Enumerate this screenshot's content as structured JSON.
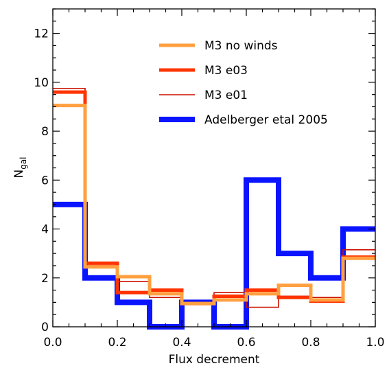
{
  "chart_data": {
    "type": "step",
    "xlabel": "Flux decrement",
    "ylabel": "N",
    "ylabel_sub": "gal",
    "xlim": [
      0.0,
      1.0
    ],
    "ylim": [
      0,
      13
    ],
    "x_ticks": [
      0.0,
      0.2,
      0.4,
      0.6,
      0.8,
      1.0
    ],
    "x_tick_labels": [
      "0.0",
      "0.2",
      "0.4",
      "0.6",
      "0.8",
      "1.0"
    ],
    "y_ticks": [
      0,
      2,
      4,
      6,
      8,
      10,
      12
    ],
    "y_tick_labels": [
      "0",
      "2",
      "4",
      "6",
      "8",
      "10",
      "12"
    ],
    "bin_edges": [
      0.0,
      0.1,
      0.2,
      0.3,
      0.4,
      0.5,
      0.6,
      0.7,
      0.8,
      0.9,
      1.0
    ],
    "legend_position": "top-center",
    "series": [
      {
        "name": "M3 no winds",
        "color": "#FFA040",
        "line_weight": "thick",
        "values": [
          9.05,
          2.45,
          2.05,
          1.35,
          0.95,
          1.1,
          1.35,
          1.7,
          1.1,
          2.8
        ]
      },
      {
        "name": "M3 e03",
        "color": "#FF3300",
        "line_weight": "thick",
        "values": [
          9.6,
          2.6,
          1.4,
          1.5,
          0.95,
          1.25,
          1.5,
          1.2,
          1.05,
          2.85
        ]
      },
      {
        "name": "M3 e01",
        "color": "#CC1100",
        "line_weight": "thin",
        "values": [
          9.75,
          2.5,
          1.85,
          1.2,
          1.0,
          1.4,
          0.8,
          1.25,
          1.2,
          3.15
        ]
      },
      {
        "name": "Adelberger etal 2005",
        "color": "#0A14FF",
        "line_weight": "very-thick",
        "values": [
          5,
          2,
          1,
          0,
          1,
          0,
          6,
          3,
          2,
          4
        ]
      }
    ]
  }
}
